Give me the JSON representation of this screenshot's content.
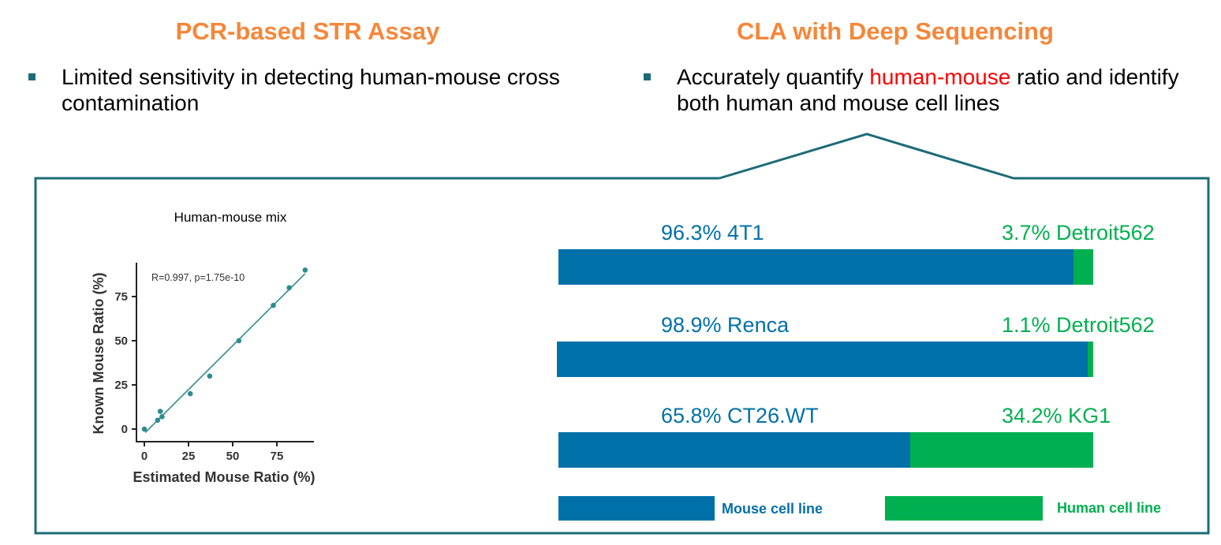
{
  "left": {
    "heading": "PCR-based STR Assay",
    "bullet": "Limited sensitivity in detecting human-mouse cross contamination"
  },
  "right": {
    "heading": "CLA with Deep Sequencing",
    "bullet_pre": "Accurately quantify ",
    "bullet_highlight": "human-mouse",
    "bullet_post": " ratio and identify both human and mouse cell lines"
  },
  "colors": {
    "heading": "#f5873a",
    "mouse": "#0070a8",
    "human": "#00b050",
    "panel_border": "#1c6b77",
    "scatter": "#2e8b8f",
    "highlight": "#ff0000"
  },
  "chart_data": [
    {
      "type": "scatter",
      "title": "Human-mouse mix",
      "annotation": "R=0.997, p=1.75e-10",
      "xlabel": "Estimated Mouse Ratio (%)",
      "ylabel": "Known Mouse Ratio (%)",
      "xticks": [
        "0",
        "25",
        "50",
        "75"
      ],
      "yticks": [
        "0",
        "25",
        "50",
        "75"
      ],
      "xlim": [
        -4,
        96
      ],
      "ylim": [
        -7,
        95
      ],
      "points": [
        [
          0,
          0
        ],
        [
          7.5,
          5
        ],
        [
          9,
          10
        ],
        [
          10,
          7
        ],
        [
          26,
          20
        ],
        [
          37,
          30
        ],
        [
          53.5,
          50
        ],
        [
          73,
          70
        ],
        [
          82,
          80
        ],
        [
          91,
          90
        ]
      ],
      "fit_line": [
        [
          0.5,
          -2
        ],
        [
          91,
          88
        ]
      ],
      "grid": false
    },
    {
      "type": "bar",
      "orientation": "horizontal-stacked",
      "rows": [
        {
          "mouse_pct": 96.3,
          "mouse_label": "96.3% 4T1",
          "human_pct": 3.7,
          "human_label": "3.7% Detroit562"
        },
        {
          "mouse_pct": 98.9,
          "mouse_label": "98.9% Renca",
          "human_pct": 1.1,
          "human_label": "1.1% Detroit562"
        },
        {
          "mouse_pct": 65.8,
          "mouse_label": "65.8% CT26.WT",
          "human_pct": 34.2,
          "human_label": "34.2% KG1"
        }
      ],
      "legend": [
        {
          "name": "Mouse cell line",
          "color": "#0070a8"
        },
        {
          "name": "Human cell line",
          "color": "#00b050"
        }
      ],
      "legend_position": "bottom"
    }
  ]
}
